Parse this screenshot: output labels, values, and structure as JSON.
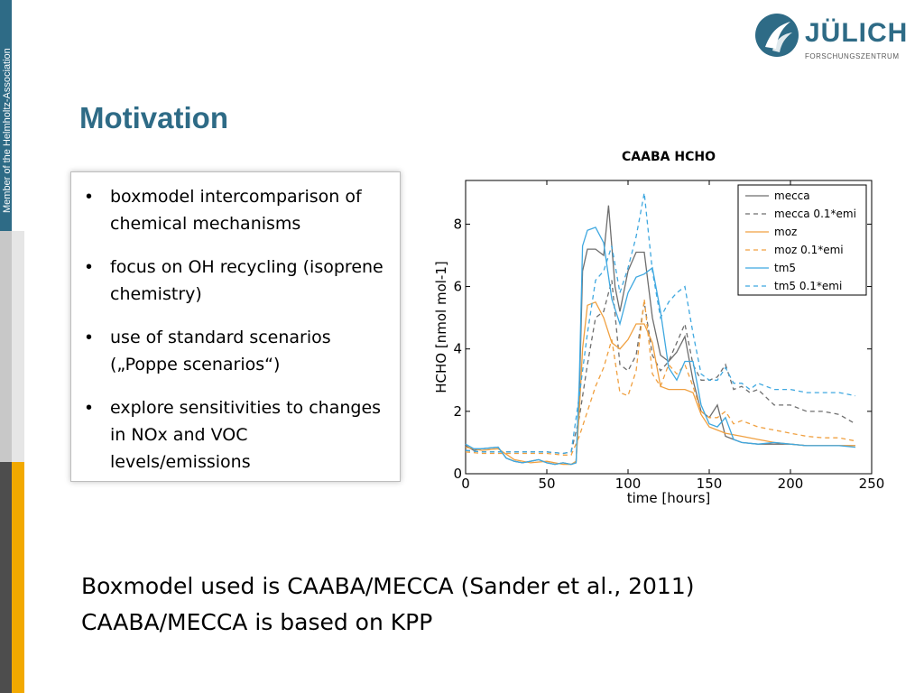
{
  "side_label": "Member of the Helmholtz-Association",
  "logo": {
    "name": "JÜLICH",
    "subtitle": "FORSCHUNGSZENTRUM"
  },
  "title": "Motivation",
  "bullets": [
    {
      "text": "boxmodel intercomparison of chemical mechanisms"
    },
    {
      "text": "focus on OH recycling (isoprene chemistry)"
    },
    {
      "text": "use of standard scenarios („Poppe scenarios“)"
    },
    {
      "text": "explore sensitivities to changes in NOx and VOC levels/emissions"
    }
  ],
  "bullet_glyph": "•",
  "footer": {
    "line1": "Boxmodel used is CAABA/MECCA (Sander et al., 2011)",
    "line2": "CAABA/MECCA is based on KPP"
  },
  "chart_data": {
    "type": "line",
    "title": "CAABA HCHO",
    "xlabel": "time [hours]",
    "ylabel": "HCHO [nmol mol-1]",
    "xlim": [
      0,
      250
    ],
    "ylim": [
      0,
      9.4
    ],
    "xticks": [
      0,
      50,
      100,
      150,
      200,
      250
    ],
    "yticks": [
      0,
      2,
      4,
      6,
      8
    ],
    "grid": false,
    "legend_position": "top-right",
    "series": [
      {
        "name": "mecca",
        "color": "#6e6e6e",
        "dash": "solid",
        "x": [
          0,
          5,
          10,
          20,
          25,
          30,
          35,
          40,
          45,
          50,
          55,
          60,
          65,
          68,
          70,
          72,
          75,
          80,
          85,
          88,
          92,
          95,
          100,
          105,
          110,
          115,
          120,
          125,
          130,
          135,
          140,
          145,
          150,
          155,
          160,
          165,
          170,
          180,
          190,
          200,
          210,
          220,
          230,
          240
        ],
        "y": [
          0.9,
          0.75,
          0.8,
          0.85,
          0.5,
          0.4,
          0.35,
          0.4,
          0.45,
          0.35,
          0.3,
          0.35,
          0.3,
          0.35,
          2.5,
          6.5,
          7.2,
          7.2,
          7.0,
          8.6,
          6.0,
          5.2,
          6.5,
          7.1,
          7.1,
          5.0,
          3.8,
          3.6,
          3.9,
          4.4,
          3.0,
          2.0,
          1.8,
          2.2,
          1.2,
          1.1,
          1.0,
          0.95,
          0.95,
          0.95,
          0.9,
          0.9,
          0.9,
          0.9
        ]
      },
      {
        "name": "mecca 0.1*emi",
        "color": "#6e6e6e",
        "dash": "dashed",
        "x": [
          0,
          10,
          20,
          30,
          40,
          50,
          60,
          65,
          70,
          75,
          80,
          85,
          90,
          95,
          100,
          105,
          110,
          115,
          120,
          125,
          130,
          135,
          140,
          145,
          150,
          155,
          160,
          165,
          170,
          175,
          180,
          190,
          200,
          210,
          220,
          230,
          240
        ],
        "y": [
          0.75,
          0.7,
          0.7,
          0.7,
          0.7,
          0.7,
          0.65,
          0.7,
          1.8,
          3.5,
          5.0,
          5.2,
          6.2,
          3.5,
          3.3,
          3.8,
          5.5,
          3.8,
          3.3,
          3.6,
          4.2,
          4.8,
          3.5,
          3.0,
          3.0,
          3.1,
          3.5,
          2.7,
          2.8,
          2.6,
          2.7,
          2.2,
          2.2,
          2.0,
          2.0,
          1.9,
          1.6
        ]
      },
      {
        "name": "moz",
        "color": "#f0a040",
        "dash": "solid",
        "x": [
          0,
          10,
          20,
          30,
          40,
          50,
          60,
          65,
          68,
          70,
          72,
          75,
          80,
          85,
          90,
          95,
          100,
          105,
          110,
          115,
          120,
          125,
          130,
          135,
          140,
          145,
          150,
          155,
          160,
          170,
          180,
          190,
          200,
          210,
          220,
          230,
          240
        ],
        "y": [
          0.85,
          0.75,
          0.8,
          0.45,
          0.35,
          0.4,
          0.3,
          0.3,
          0.4,
          2.0,
          4.0,
          5.4,
          5.5,
          5.0,
          4.2,
          4.0,
          4.3,
          4.8,
          4.8,
          4.2,
          2.8,
          2.7,
          2.7,
          2.7,
          2.6,
          1.9,
          1.5,
          1.4,
          1.3,
          1.2,
          1.1,
          1.0,
          0.95,
          0.9,
          0.9,
          0.9,
          0.9
        ]
      },
      {
        "name": "moz 0.1*emi",
        "color": "#f0a040",
        "dash": "dashed",
        "x": [
          0,
          10,
          20,
          30,
          40,
          50,
          60,
          65,
          70,
          75,
          80,
          85,
          90,
          95,
          100,
          105,
          110,
          115,
          120,
          125,
          130,
          135,
          140,
          145,
          150,
          155,
          160,
          165,
          170,
          180,
          190,
          200,
          210,
          220,
          230,
          240
        ],
        "y": [
          0.7,
          0.65,
          0.65,
          0.65,
          0.65,
          0.65,
          0.6,
          0.6,
          1.2,
          2.0,
          2.8,
          3.4,
          4.3,
          2.6,
          2.5,
          3.3,
          5.6,
          3.2,
          2.8,
          3.5,
          3.2,
          3.5,
          2.8,
          2.0,
          1.8,
          1.8,
          2.0,
          1.6,
          1.7,
          1.5,
          1.4,
          1.3,
          1.2,
          1.15,
          1.15,
          1.05
        ]
      },
      {
        "name": "tm5",
        "color": "#3fa8e0",
        "dash": "solid",
        "x": [
          0,
          5,
          10,
          20,
          25,
          30,
          35,
          40,
          45,
          50,
          55,
          60,
          65,
          68,
          70,
          72,
          75,
          80,
          85,
          90,
          95,
          100,
          105,
          110,
          115,
          120,
          125,
          130,
          135,
          140,
          145,
          150,
          155,
          160,
          165,
          170,
          180,
          190,
          200,
          210,
          220,
          230,
          240
        ],
        "y": [
          0.95,
          0.8,
          0.8,
          0.85,
          0.5,
          0.4,
          0.35,
          0.4,
          0.45,
          0.35,
          0.3,
          0.35,
          0.3,
          0.35,
          3.0,
          7.3,
          7.8,
          7.9,
          7.4,
          5.6,
          4.8,
          5.8,
          6.3,
          6.4,
          6.6,
          5.2,
          3.4,
          3.0,
          3.6,
          3.6,
          2.2,
          1.6,
          1.5,
          1.8,
          1.1,
          1.0,
          0.95,
          1.0,
          0.95,
          0.9,
          0.9,
          0.9,
          0.85
        ]
      },
      {
        "name": "tm5 0.1*emi",
        "color": "#3fa8e0",
        "dash": "dashed",
        "x": [
          0,
          10,
          20,
          30,
          40,
          50,
          60,
          65,
          70,
          75,
          80,
          85,
          90,
          95,
          100,
          105,
          110,
          115,
          120,
          125,
          130,
          135,
          140,
          145,
          150,
          155,
          160,
          165,
          170,
          175,
          180,
          190,
          200,
          210,
          220,
          230,
          240
        ],
        "y": [
          0.75,
          0.7,
          0.7,
          0.7,
          0.7,
          0.7,
          0.65,
          0.7,
          2.5,
          4.5,
          6.2,
          6.5,
          7.3,
          5.8,
          6.6,
          7.6,
          9.0,
          6.5,
          5.0,
          5.5,
          5.8,
          6.0,
          4.5,
          3.2,
          3.0,
          3.0,
          3.4,
          2.9,
          2.9,
          2.7,
          2.9,
          2.7,
          2.7,
          2.6,
          2.6,
          2.6,
          2.5
        ]
      }
    ]
  }
}
